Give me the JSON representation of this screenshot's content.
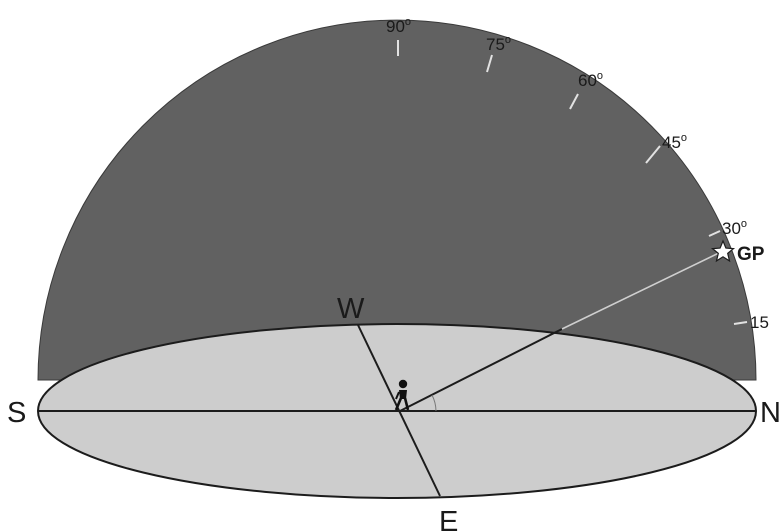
{
  "directions": {
    "south": "S",
    "north": "N",
    "west": "W",
    "east": "E"
  },
  "altitude_marks": {
    "a90": "90",
    "a75": "75",
    "a60": "60",
    "a45": "45",
    "a30": "30",
    "a15": "15",
    "degree_symbol": "o"
  },
  "star_label": "GP",
  "colors": {
    "dome": "#616161",
    "horizon_plane": "#cdcdcd",
    "line": "#1c1c1c",
    "tick": "#e2e2e2",
    "background": "#ffffff"
  },
  "icons": {
    "observer": "person-standing-icon",
    "star": "star-outline-icon"
  }
}
